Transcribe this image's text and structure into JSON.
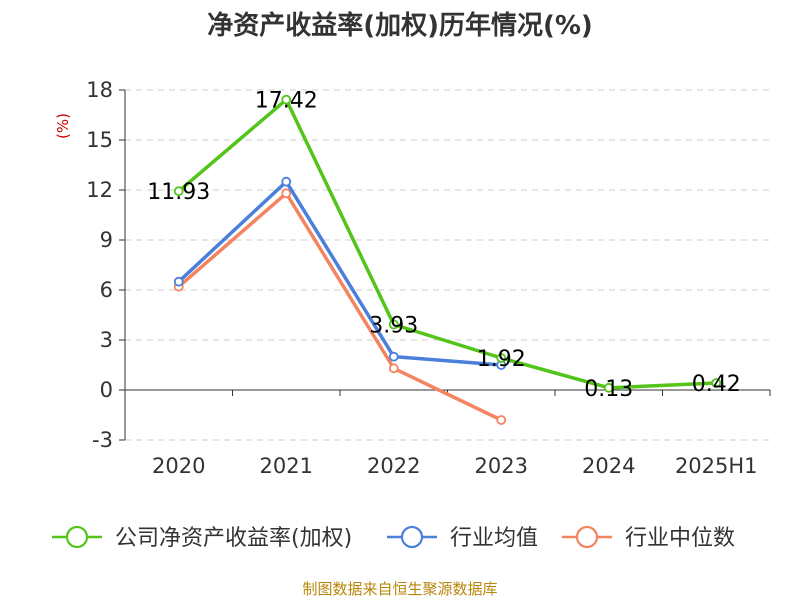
{
  "chart_data": {
    "type": "line",
    "title": "净资产收益率(加权)历年情况(%)",
    "ylabel": "(%)",
    "categories": [
      "2020",
      "2021",
      "2022",
      "2023",
      "2024",
      "2025H1"
    ],
    "ylim": [
      -3,
      18
    ],
    "yticks": [
      "18",
      "15",
      "12",
      "9",
      "6",
      "3",
      "0",
      "-3"
    ],
    "grid": true,
    "legend_position": "bottom",
    "series": [
      {
        "name": "公司净资产收益率(加权)",
        "color": "#52c41a",
        "values": [
          11.93,
          17.42,
          3.93,
          1.92,
          0.13,
          0.42
        ],
        "labels": [
          "11.93",
          "17.42",
          "3.93",
          "1.92",
          "0.13",
          "0.42"
        ]
      },
      {
        "name": "行业均值",
        "color": "#4a7fdb",
        "values": [
          6.5,
          12.5,
          2.0,
          1.5,
          null,
          null
        ],
        "labels": []
      },
      {
        "name": "行业中位数",
        "color": "#f4845f",
        "values": [
          6.2,
          11.8,
          1.3,
          -1.8,
          null,
          null
        ],
        "labels": []
      }
    ],
    "source": "制图数据来自恒生聚源数据库"
  }
}
